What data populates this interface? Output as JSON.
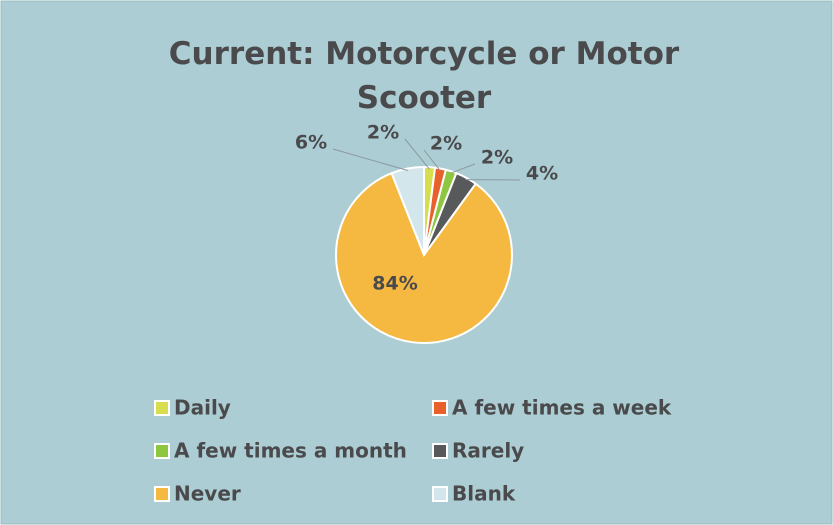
{
  "chart_data": {
    "type": "pie",
    "title": "Current: Motorcycle or Motor Scooter",
    "categories": [
      "Daily",
      "A few times a week",
      "A few times a month",
      "Rarely",
      "Never",
      "Blank"
    ],
    "values": [
      2,
      2,
      2,
      4,
      84,
      6
    ],
    "value_labels": [
      "2%",
      "2%",
      "2%",
      "4%",
      "84%",
      "6%"
    ],
    "colors": [
      "#d6de4f",
      "#e8612c",
      "#8dc63f",
      "#58595b",
      "#f5b942",
      "#d3e6ec"
    ],
    "legend": "bottom"
  }
}
